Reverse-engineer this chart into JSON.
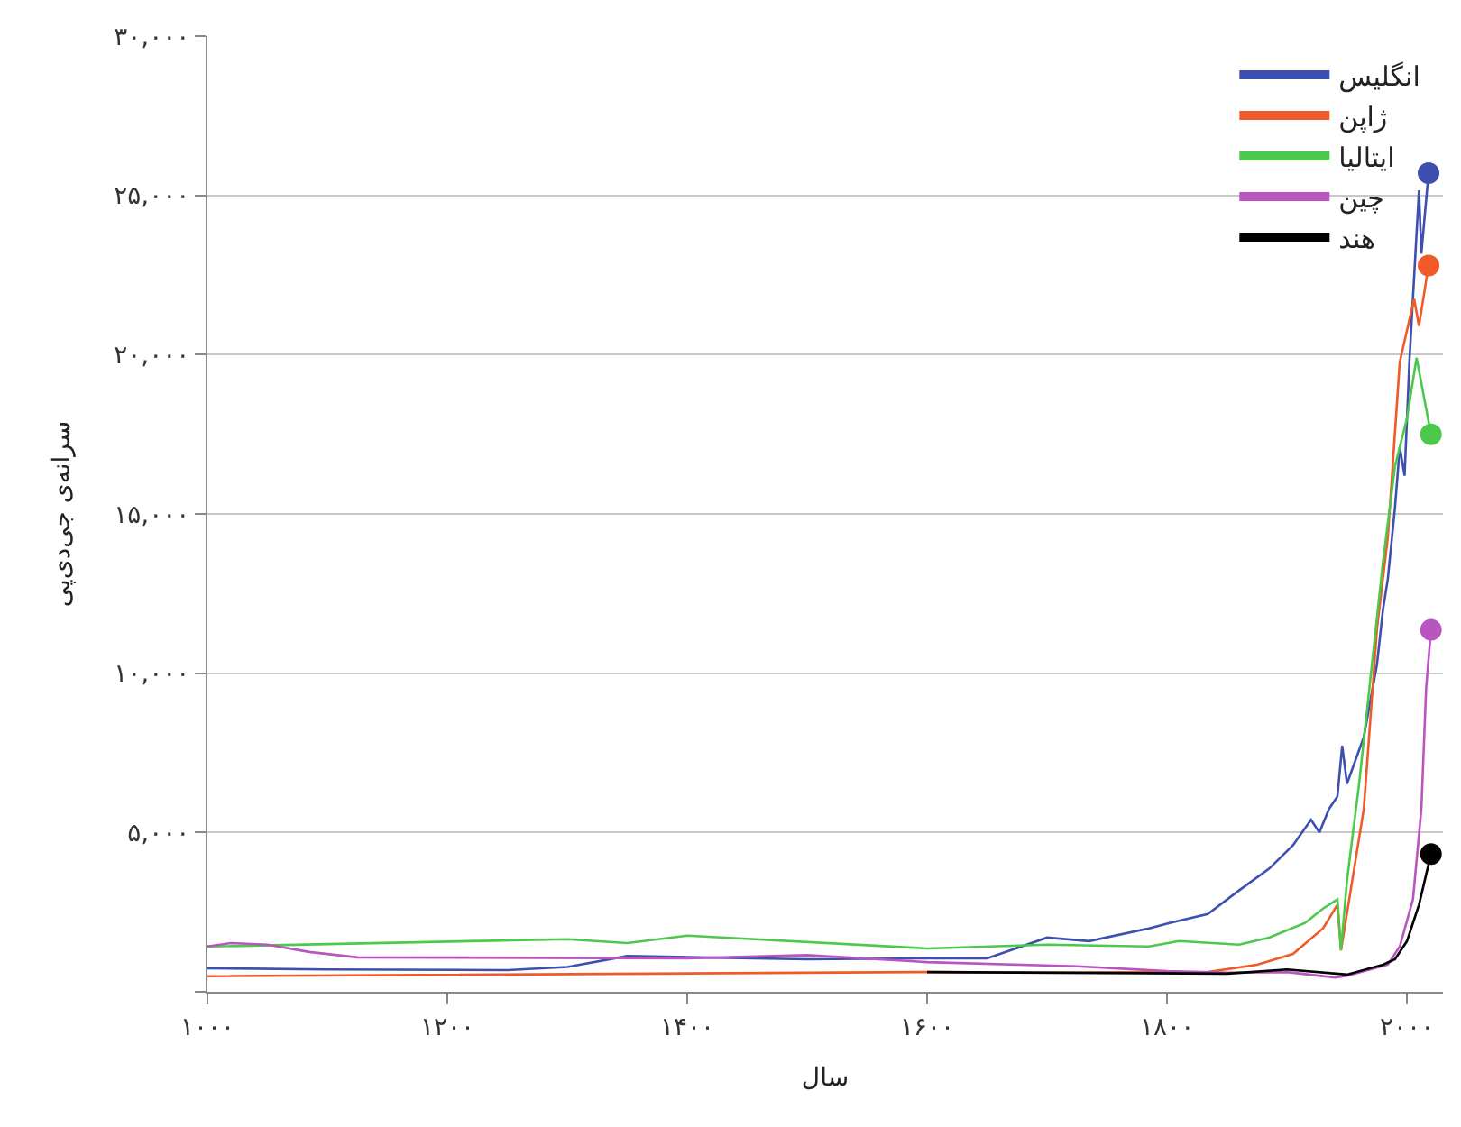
{
  "chart_data": {
    "type": "line",
    "xlabel": "سال",
    "ylabel": "سرانه‌ی جی‌دی‌پی",
    "xlim": [
      1000,
      2030
    ],
    "xticks": [
      {
        "value": 1000,
        "label": "۱۰۰۰"
      },
      {
        "value": 1200,
        "label": "۱۲۰۰"
      },
      {
        "value": 1400,
        "label": "۱۴۰۰"
      },
      {
        "value": 1600,
        "label": "۱۶۰۰"
      },
      {
        "value": 1800,
        "label": "۱۸۰۰"
      },
      {
        "value": 2000,
        "label": "۲۰۰۰"
      }
    ],
    "ylim": [
      0,
      30000
    ],
    "yticks": [
      {
        "value": 0,
        "label": null
      },
      {
        "value": 5000,
        "label": "۵,۰۰۰"
      },
      {
        "value": 10000,
        "label": "۱۰,۰۰۰"
      },
      {
        "value": 15000,
        "label": "۱۵,۰۰۰"
      },
      {
        "value": 20000,
        "label": "۲۰,۰۰۰"
      },
      {
        "value": 25000,
        "label": "۲۵,۰۰۰"
      },
      {
        "value": 30000,
        "label": "۳۰,۰۰۰"
      }
    ],
    "grid": "y",
    "legend": "top right",
    "marker": "none",
    "line_style": "solid",
    "series": [
      {
        "name": "انگلیس",
        "color": "#3d50b0",
        "x": [
          1000,
          1100,
          1250,
          1300,
          1350,
          1500,
          1600,
          1650,
          1700,
          1735,
          1785,
          1802,
          1834,
          1860,
          1885,
          1905,
          1920,
          1927,
          1935,
          1942,
          1946,
          1950,
          1964,
          1975,
          1980,
          1984,
          1990,
          1994,
          1998,
          2002,
          2010,
          2012,
          2018
        ],
        "values": [
          740,
          700,
          680,
          780,
          1120,
          1020,
          1050,
          1050,
          1700,
          1590,
          1990,
          2160,
          2440,
          3180,
          3860,
          4600,
          5400,
          5000,
          5740,
          6130,
          7720,
          6530,
          8000,
          10280,
          12000,
          12950,
          15200,
          17100,
          16200,
          19770,
          25160,
          23170,
          25700
        ]
      },
      {
        "name": "ژاپن",
        "color": "#f05a28",
        "x": [
          1000,
          1600,
          1700,
          1834,
          1875,
          1905,
          1930,
          1942,
          1945,
          1964,
          1975,
          1984,
          1994,
          2006,
          2010,
          2018
        ],
        "values": [
          490,
          620,
          600,
          620,
          850,
          1190,
          1990,
          2730,
          1300,
          5740,
          11400,
          14260,
          19770,
          21750,
          20900,
          22800
        ]
      },
      {
        "name": "ایتالیا",
        "color": "#4cc94c",
        "x": [
          1000,
          1300,
          1350,
          1400,
          1600,
          1700,
          1785,
          1810,
          1860,
          1885,
          1915,
          1930,
          1942,
          1945,
          1950,
          1960,
          1970,
          1980,
          1990,
          2000,
          2008,
          2020
        ],
        "values": [
          1420,
          1650,
          1530,
          1760,
          1360,
          1480,
          1420,
          1590,
          1480,
          1700,
          2160,
          2610,
          2900,
          1310,
          3500,
          6500,
          10000,
          13500,
          16500,
          18000,
          19900,
          17500
        ]
      },
      {
        "name": "چین",
        "color": "#b855c0",
        "x": [
          1000,
          1020,
          1050,
          1085,
          1125,
          1400,
          1500,
          1600,
          1725,
          1800,
          1850,
          1900,
          1940,
          1950,
          1984,
          1994,
          2005,
          2012,
          2016,
          2020
        ],
        "values": [
          1420,
          1530,
          1480,
          1250,
          1080,
          1050,
          1150,
          930,
          800,
          650,
          600,
          620,
          450,
          500,
          850,
          1420,
          2900,
          5740,
          9540,
          11360
        ]
      },
      {
        "name": "هند",
        "color": "#000000",
        "x": [
          1600,
          1850,
          1870,
          1900,
          1950,
          1980,
          1990,
          2000,
          2010,
          2020
        ],
        "values": [
          620,
          570,
          620,
          700,
          540,
          850,
          1020,
          1590,
          2730,
          4320
        ]
      }
    ]
  }
}
